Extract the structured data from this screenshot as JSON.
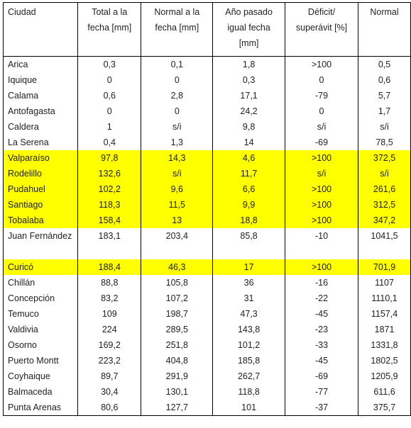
{
  "headers": [
    "Ciudad",
    "Total a la fecha [mm]",
    "Normal a la fecha [mm]",
    "Año pasado igual fecha [mm]",
    "Déficit/ superávit [%]",
    "Normal"
  ],
  "highlight_color": "#ffff00",
  "rows": [
    {
      "cells": [
        "Arica",
        "0,3",
        "0,1",
        "1,8",
        ">100",
        "0,5"
      ],
      "highlight": false
    },
    {
      "cells": [
        "Iquique",
        "0",
        "0",
        "0,3",
        "0",
        "0,6"
      ],
      "highlight": false
    },
    {
      "cells": [
        "Calama",
        "0,6",
        "2,8",
        "17,1",
        "-79",
        "5,7"
      ],
      "highlight": false
    },
    {
      "cells": [
        "Antofagasta",
        "0",
        "0",
        "24,2",
        "0",
        "1,7"
      ],
      "highlight": false
    },
    {
      "cells": [
        "Caldera",
        "1",
        "s/i",
        "9,8",
        "s/i",
        "s/i"
      ],
      "highlight": false
    },
    {
      "cells": [
        "La Serena",
        "0,4",
        "1,3",
        "14",
        "-69",
        "78,5"
      ],
      "highlight": false
    },
    {
      "cells": [
        "Valparaíso",
        "97,8",
        "14,3",
        "4,6",
        ">100",
        "372,5"
      ],
      "highlight": true
    },
    {
      "cells": [
        "Rodelillo",
        "132,6",
        "s/i",
        "11,7",
        "s/i",
        "s/i"
      ],
      "highlight": true
    },
    {
      "cells": [
        "Pudahuel",
        "102,2",
        "9,6",
        "6,6",
        ">100",
        "261,6"
      ],
      "highlight": true
    },
    {
      "cells": [
        "Santiago",
        "118,3",
        "11,5",
        "9,9",
        ">100",
        "312,5"
      ],
      "highlight": true
    },
    {
      "cells": [
        "Tobalaba",
        "158,4",
        "13",
        "18,8",
        ">100",
        "347,2"
      ],
      "highlight": true
    },
    {
      "cells": [
        "Juan Fernández",
        "183,1",
        "203,4",
        "85,8",
        "-10",
        "1041,5"
      ],
      "highlight": false,
      "tall": true
    },
    {
      "cells": [
        "Curicó",
        "188,4",
        "46,3",
        "17",
        ">100",
        "701,9"
      ],
      "highlight": true
    },
    {
      "cells": [
        "Chillán",
        "88,8",
        "105,8",
        "36",
        "-16",
        "1107"
      ],
      "highlight": false
    },
    {
      "cells": [
        "Concepción",
        "83,2",
        "107,2",
        "31",
        "-22",
        "1110,1"
      ],
      "highlight": false
    },
    {
      "cells": [
        "Temuco",
        "109",
        "198,7",
        "47,3",
        "-45",
        "1157,4"
      ],
      "highlight": false
    },
    {
      "cells": [
        "Valdivia",
        "224",
        "289,5",
        "143,8",
        "-23",
        "1871"
      ],
      "highlight": false
    },
    {
      "cells": [
        "Osorno",
        "169,2",
        "251,8",
        "101,2",
        "-33",
        "1331,8"
      ],
      "highlight": false
    },
    {
      "cells": [
        "Puerto Montt",
        "223,2",
        "404,8",
        "185,8",
        "-45",
        "1802,5"
      ],
      "highlight": false
    },
    {
      "cells": [
        "Coyhaique",
        "89,7",
        "291,9",
        "262,7",
        "-69",
        "1205,9"
      ],
      "highlight": false
    },
    {
      "cells": [
        "Balmaceda",
        "30,4",
        "130,1",
        "118,8",
        "-77",
        "611,6"
      ],
      "highlight": false
    },
    {
      "cells": [
        "Punta Arenas",
        "80,6",
        "127,7",
        "101",
        "-37",
        "375,7"
      ],
      "highlight": false
    }
  ]
}
